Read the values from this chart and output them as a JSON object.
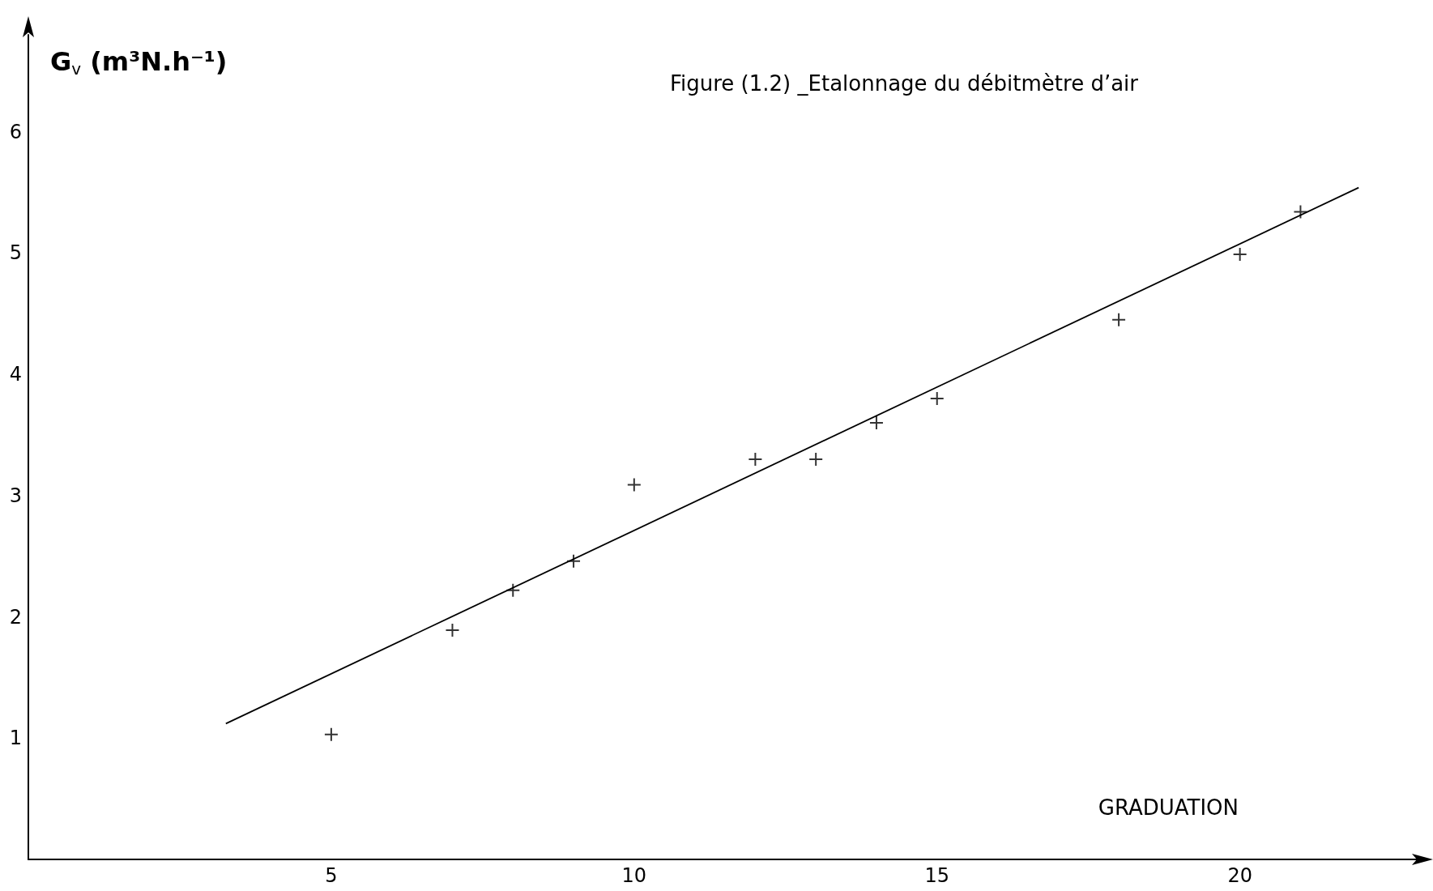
{
  "chart_data": {
    "type": "scatter",
    "title": "Figure (1.2) _Etalonnage du débitmètre d’air",
    "xlabel": "GRADUATION",
    "ylabel": "G$_{v}$ (m³N.h⁻¹)",
    "xlim": [
      0,
      23
    ],
    "ylim": [
      0,
      6.8
    ],
    "xticks": [
      5,
      10,
      15,
      20
    ],
    "yticks": [
      1,
      2,
      3,
      4,
      5,
      6
    ],
    "grid": false,
    "series": [
      {
        "marker": "cross",
        "color": "#000000",
        "x": [
          5,
          7,
          8,
          9,
          10,
          12,
          13,
          14,
          15,
          18,
          20,
          21
        ],
        "values": [
          1.03,
          1.89,
          2.22,
          2.46,
          3.09,
          3.3,
          3.3,
          3.6,
          3.8,
          4.45,
          4.99,
          5.34
        ]
      },
      {
        "type": "line",
        "color": "#000000",
        "x": [
          3.26,
          21.96
        ],
        "values": [
          1.12,
          5.54
        ]
      }
    ]
  }
}
